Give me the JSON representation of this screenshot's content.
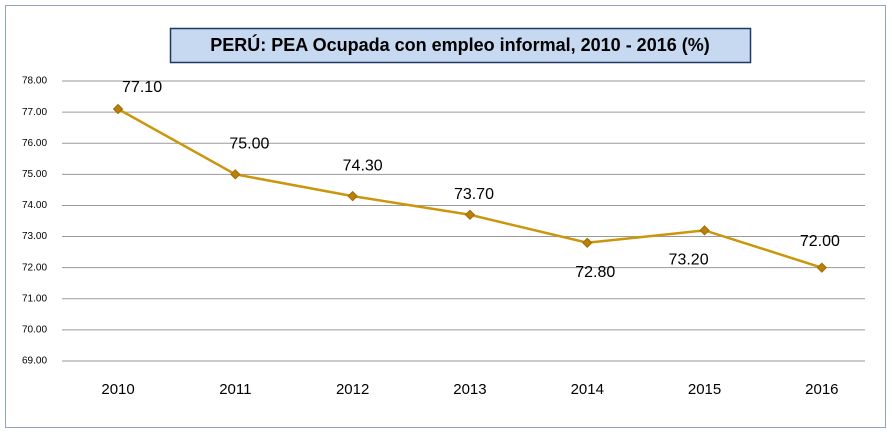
{
  "chart_data": {
    "type": "line",
    "title": "PERÚ: PEA Ocupada con empleo informal, 2010  - 2016 (%)",
    "categories": [
      "2010",
      "2011",
      "2012",
      "2013",
      "2014",
      "2015",
      "2016"
    ],
    "series": [
      {
        "name": "PEA Ocupada con empleo informal",
        "color": "#c9960c",
        "values": [
          77.1,
          75.0,
          74.3,
          73.7,
          72.8,
          73.2,
          72.0
        ],
        "value_labels": [
          "77.10",
          "75.00",
          "74.30",
          "73.70",
          "72.80",
          "73.20",
          "72.00"
        ]
      }
    ],
    "ylim": [
      69,
      78
    ],
    "yticks": [
      {
        "value": 69,
        "label": "69.00"
      },
      {
        "value": 70,
        "label": "70.00"
      },
      {
        "value": 71,
        "label": "71.00"
      },
      {
        "value": 72,
        "label": "72.00"
      },
      {
        "value": 73,
        "label": "73.00"
      },
      {
        "value": 74,
        "label": "74.00"
      },
      {
        "value": 75,
        "label": "75.00"
      },
      {
        "value": 76,
        "label": "76.00"
      },
      {
        "value": 77,
        "label": "77.00"
      },
      {
        "value": 78,
        "label": "78.00"
      }
    ],
    "grid": true
  }
}
